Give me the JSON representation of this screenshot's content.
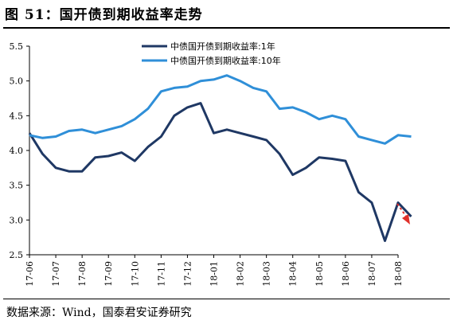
{
  "figure": {
    "title": "图 51：国开债到期收益率走势",
    "source": "数据来源：Wind，国泰君安证券研究"
  },
  "chart_data": {
    "type": "line",
    "x_ticks": [
      "17-06",
      "17-07",
      "17-08",
      "17-09",
      "17-10",
      "17-11",
      "17-12",
      "18-01",
      "18-02",
      "18-03",
      "18-04",
      "18-05",
      "18-06",
      "18-07",
      "18-08"
    ],
    "ylim": [
      2.5,
      5.5
    ],
    "y_ticks": [
      "2.5",
      "3.0",
      "3.5",
      "4.0",
      "4.5",
      "5.0",
      "5.5"
    ],
    "legend_position": "top-center",
    "series": [
      {
        "name": "中债国开债到期收益率:1年",
        "color": "#1f3864",
        "points": [
          [
            "17-06",
            4.25
          ],
          [
            "17-06/2",
            3.95
          ],
          [
            "17-07",
            3.75
          ],
          [
            "17-07/2",
            3.7
          ],
          [
            "17-08",
            3.7
          ],
          [
            "17-08/2",
            3.9
          ],
          [
            "17-09",
            3.92
          ],
          [
            "17-09/2",
            3.97
          ],
          [
            "17-10",
            3.85
          ],
          [
            "17-10/2",
            4.05
          ],
          [
            "17-11",
            4.2
          ],
          [
            "17-11/2",
            4.5
          ],
          [
            "17-12",
            4.62
          ],
          [
            "17-12/2",
            4.68
          ],
          [
            "18-01",
            4.25
          ],
          [
            "18-01/2",
            4.3
          ],
          [
            "18-02",
            4.25
          ],
          [
            "18-02/2",
            4.2
          ],
          [
            "18-03",
            4.15
          ],
          [
            "18-03/2",
            3.95
          ],
          [
            "18-04",
            3.65
          ],
          [
            "18-04/2",
            3.75
          ],
          [
            "18-05",
            3.9
          ],
          [
            "18-05/2",
            3.88
          ],
          [
            "18-06",
            3.85
          ],
          [
            "18-06/2",
            3.4
          ],
          [
            "18-07",
            3.25
          ],
          [
            "18-07/2",
            2.7
          ],
          [
            "18-08",
            3.25
          ],
          [
            "18-08/2",
            3.05
          ]
        ]
      },
      {
        "name": "中债国开债到期收益率:10年",
        "color": "#2f8fd8",
        "points": [
          [
            "17-06",
            4.22
          ],
          [
            "17-06/2",
            4.18
          ],
          [
            "17-07",
            4.2
          ],
          [
            "17-07/2",
            4.28
          ],
          [
            "17-08",
            4.3
          ],
          [
            "17-08/2",
            4.25
          ],
          [
            "17-09",
            4.3
          ],
          [
            "17-09/2",
            4.35
          ],
          [
            "17-10",
            4.45
          ],
          [
            "17-10/2",
            4.6
          ],
          [
            "17-11",
            4.85
          ],
          [
            "17-11/2",
            4.9
          ],
          [
            "17-12",
            4.92
          ],
          [
            "17-12/2",
            5.0
          ],
          [
            "18-01",
            5.02
          ],
          [
            "18-01/2",
            5.08
          ],
          [
            "18-02",
            5.0
          ],
          [
            "18-02/2",
            4.9
          ],
          [
            "18-03",
            4.85
          ],
          [
            "18-03/2",
            4.6
          ],
          [
            "18-04",
            4.62
          ],
          [
            "18-04/2",
            4.55
          ],
          [
            "18-05",
            4.45
          ],
          [
            "18-05/2",
            4.5
          ],
          [
            "18-06",
            4.45
          ],
          [
            "18-06/2",
            4.2
          ],
          [
            "18-07",
            4.15
          ],
          [
            "18-07/2",
            4.1
          ],
          [
            "18-08",
            4.22
          ],
          [
            "18-08/2",
            4.2
          ]
        ]
      }
    ],
    "annotation": {
      "type": "arrow",
      "color": "#e0302a",
      "direction": "down-right"
    }
  }
}
